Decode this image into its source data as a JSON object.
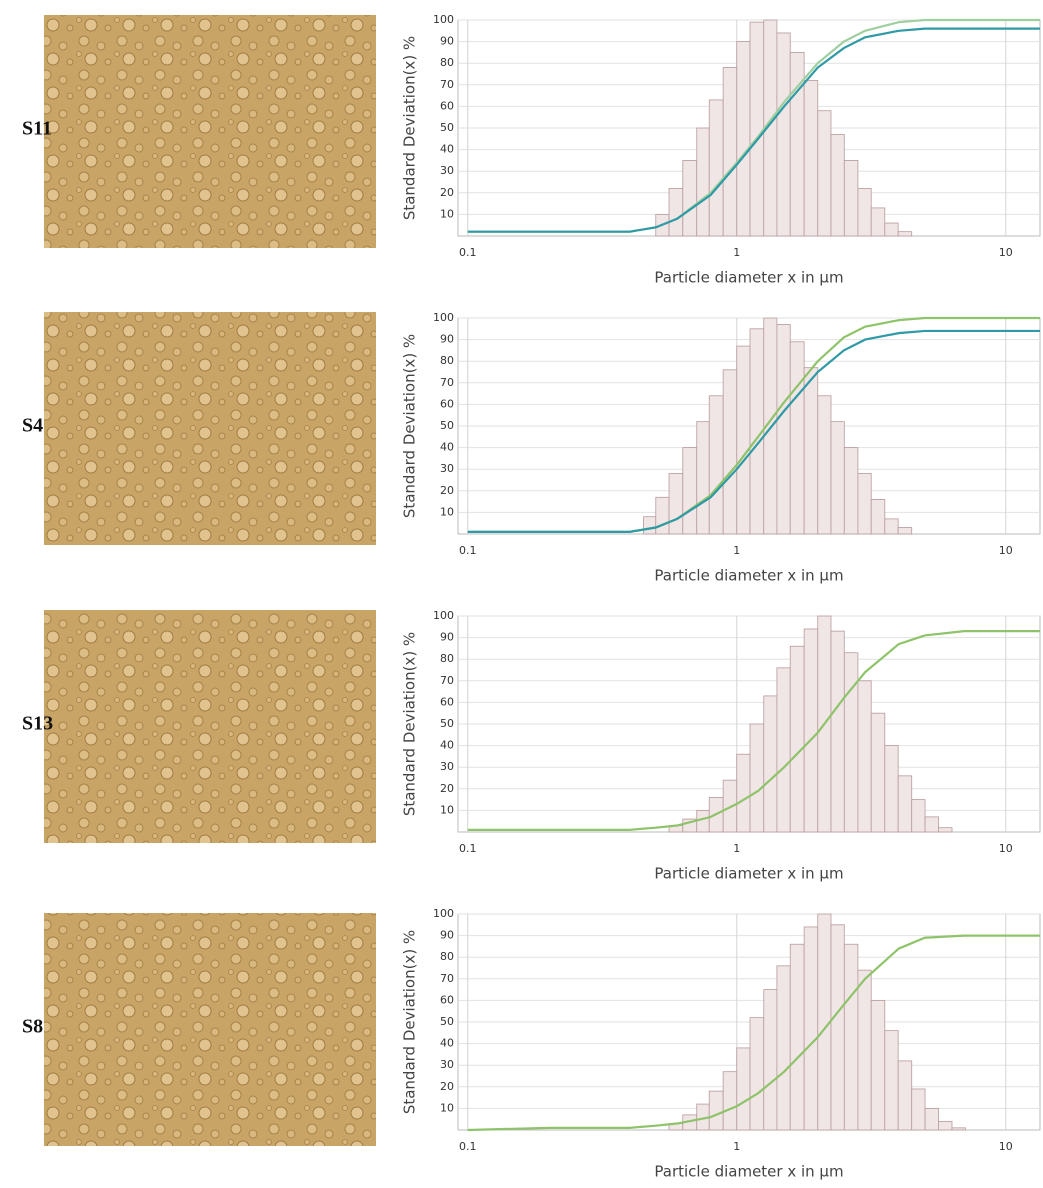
{
  "panel_labels": [
    "S11",
    "S4",
    "S13",
    "S8"
  ],
  "chart_data": [
    {
      "type": "histogram",
      "x_label": "Particle diameter x in µm",
      "y_label": "Standard Deviation(x) %",
      "xlog": true,
      "grid": true,
      "xlim": [
        0.092,
        13.4
      ],
      "ylim": [
        0,
        100
      ],
      "xticks": [
        0.1,
        1,
        10
      ],
      "yticks": [
        10,
        20,
        30,
        40,
        50,
        60,
        70,
        80,
        90,
        100
      ],
      "bins": [
        0.5,
        0.56,
        0.63,
        0.71,
        0.79,
        0.89,
        1.0,
        1.12,
        1.26,
        1.41,
        1.58,
        1.78,
        2.0,
        2.24,
        2.51,
        2.82,
        3.16,
        3.55,
        3.98,
        4.47
      ],
      "counts": [
        10,
        22,
        35,
        50,
        63,
        78,
        90,
        99,
        100,
        94,
        85,
        72,
        58,
        47,
        35,
        22,
        13,
        6,
        2
      ],
      "bar_color": "#f1e6e6",
      "lines": [
        {
          "color": "#9fcfa0",
          "x": [
            0.1,
            0.2,
            0.3,
            0.4,
            0.5,
            0.6,
            0.8,
            1,
            1.2,
            1.5,
            2,
            2.5,
            3,
            4,
            5,
            7,
            10,
            13.4
          ],
          "values": [
            2,
            2,
            2,
            2,
            4,
            8,
            20,
            34,
            46,
            62,
            80,
            90,
            95,
            99,
            100,
            100,
            100,
            100
          ]
        },
        {
          "color": "#2f9aa6",
          "x": [
            0.1,
            0.2,
            0.3,
            0.4,
            0.5,
            0.6,
            0.8,
            1,
            1.2,
            1.5,
            2,
            2.5,
            3,
            4,
            5,
            7,
            10,
            13.4
          ],
          "values": [
            2,
            2,
            2,
            2,
            4,
            8,
            19,
            33,
            45,
            60,
            78,
            87,
            92,
            95,
            96,
            96,
            96,
            96
          ]
        }
      ]
    },
    {
      "type": "histogram",
      "x_label": "Particle diameter x in µm",
      "y_label": "Standard Deviation(x) %",
      "xlog": true,
      "grid": true,
      "xlim": [
        0.092,
        13.4
      ],
      "ylim": [
        0,
        100
      ],
      "xticks": [
        0.1,
        1,
        10
      ],
      "yticks": [
        10,
        20,
        30,
        40,
        50,
        60,
        70,
        80,
        90,
        100
      ],
      "bins": [
        0.45,
        0.5,
        0.56,
        0.63,
        0.71,
        0.79,
        0.89,
        1.0,
        1.12,
        1.26,
        1.41,
        1.58,
        1.78,
        2.0,
        2.24,
        2.51,
        2.82,
        3.16,
        3.55,
        3.98,
        4.47
      ],
      "counts": [
        8,
        17,
        28,
        40,
        52,
        64,
        76,
        87,
        95,
        100,
        97,
        89,
        77,
        64,
        52,
        40,
        28,
        16,
        7,
        3
      ],
      "bar_color": "#f1e6e6",
      "lines": [
        {
          "color": "#8ec36a",
          "x": [
            0.1,
            0.2,
            0.3,
            0.4,
            0.5,
            0.6,
            0.8,
            1,
            1.2,
            1.5,
            2,
            2.5,
            3,
            4,
            5,
            7,
            10,
            13.4
          ],
          "values": [
            1,
            1,
            1,
            1,
            3,
            7,
            18,
            32,
            45,
            61,
            80,
            91,
            96,
            99,
            100,
            100,
            100,
            100
          ]
        },
        {
          "color": "#2f9aa6",
          "x": [
            0.1,
            0.2,
            0.3,
            0.4,
            0.5,
            0.6,
            0.8,
            1,
            1.2,
            1.5,
            2,
            2.5,
            3,
            4,
            5,
            7,
            10,
            13.4
          ],
          "values": [
            1,
            1,
            1,
            1,
            3,
            7,
            17,
            30,
            42,
            57,
            75,
            85,
            90,
            93,
            94,
            94,
            94,
            94
          ]
        }
      ]
    },
    {
      "type": "histogram",
      "x_label": "Particle diameter x in µm",
      "y_label": "Standard Deviation(x) %",
      "xlog": true,
      "grid": true,
      "xlim": [
        0.092,
        13.4
      ],
      "ylim": [
        0,
        100
      ],
      "xticks": [
        0.1,
        1,
        10
      ],
      "yticks": [
        10,
        20,
        30,
        40,
        50,
        60,
        70,
        80,
        90,
        100
      ],
      "bins": [
        0.56,
        0.63,
        0.71,
        0.79,
        0.89,
        1.0,
        1.12,
        1.26,
        1.41,
        1.58,
        1.78,
        2.0,
        2.24,
        2.51,
        2.82,
        3.16,
        3.55,
        3.98,
        4.47,
        5.01,
        5.62,
        6.31
      ],
      "counts": [
        3,
        6,
        10,
        16,
        24,
        36,
        50,
        63,
        76,
        86,
        94,
        100,
        93,
        83,
        70,
        55,
        40,
        26,
        15,
        7,
        2
      ],
      "bar_color": "#f1e6e6",
      "lines": [
        {
          "color": "#8ec36a",
          "x": [
            0.1,
            0.2,
            0.3,
            0.4,
            0.5,
            0.6,
            0.8,
            1,
            1.2,
            1.5,
            2,
            2.5,
            3,
            4,
            5,
            7,
            10,
            13.4
          ],
          "values": [
            1,
            1,
            1,
            1,
            2,
            3,
            7,
            13,
            19,
            30,
            46,
            62,
            74,
            87,
            91,
            93,
            93,
            93
          ]
        }
      ]
    },
    {
      "type": "histogram",
      "x_label": "Particle diameter x in µm",
      "y_label": "Standard Deviation(x) %",
      "xlog": true,
      "grid": true,
      "xlim": [
        0.092,
        13.4
      ],
      "ylim": [
        0,
        100
      ],
      "xticks": [
        0.1,
        1,
        10
      ],
      "yticks": [
        10,
        20,
        30,
        40,
        50,
        60,
        70,
        80,
        90,
        100
      ],
      "bins": [
        0.56,
        0.63,
        0.71,
        0.79,
        0.89,
        1.0,
        1.12,
        1.26,
        1.41,
        1.58,
        1.78,
        2.0,
        2.24,
        2.51,
        2.82,
        3.16,
        3.55,
        3.98,
        4.47,
        5.01,
        5.62,
        6.31,
        7.08
      ],
      "counts": [
        3,
        7,
        12,
        18,
        27,
        38,
        52,
        65,
        76,
        86,
        94,
        100,
        95,
        86,
        74,
        60,
        46,
        32,
        19,
        10,
        4,
        1
      ],
      "bar_color": "#f1e6e6",
      "lines": [
        {
          "color": "#8ec36a",
          "x": [
            0.1,
            0.2,
            0.3,
            0.4,
            0.5,
            0.6,
            0.8,
            1,
            1.2,
            1.5,
            2,
            2.5,
            3,
            4,
            5,
            7,
            10,
            13.4
          ],
          "values": [
            0,
            1,
            1,
            1,
            2,
            3,
            6,
            11,
            17,
            27,
            43,
            58,
            70,
            84,
            89,
            90,
            90,
            90
          ]
        }
      ]
    }
  ]
}
